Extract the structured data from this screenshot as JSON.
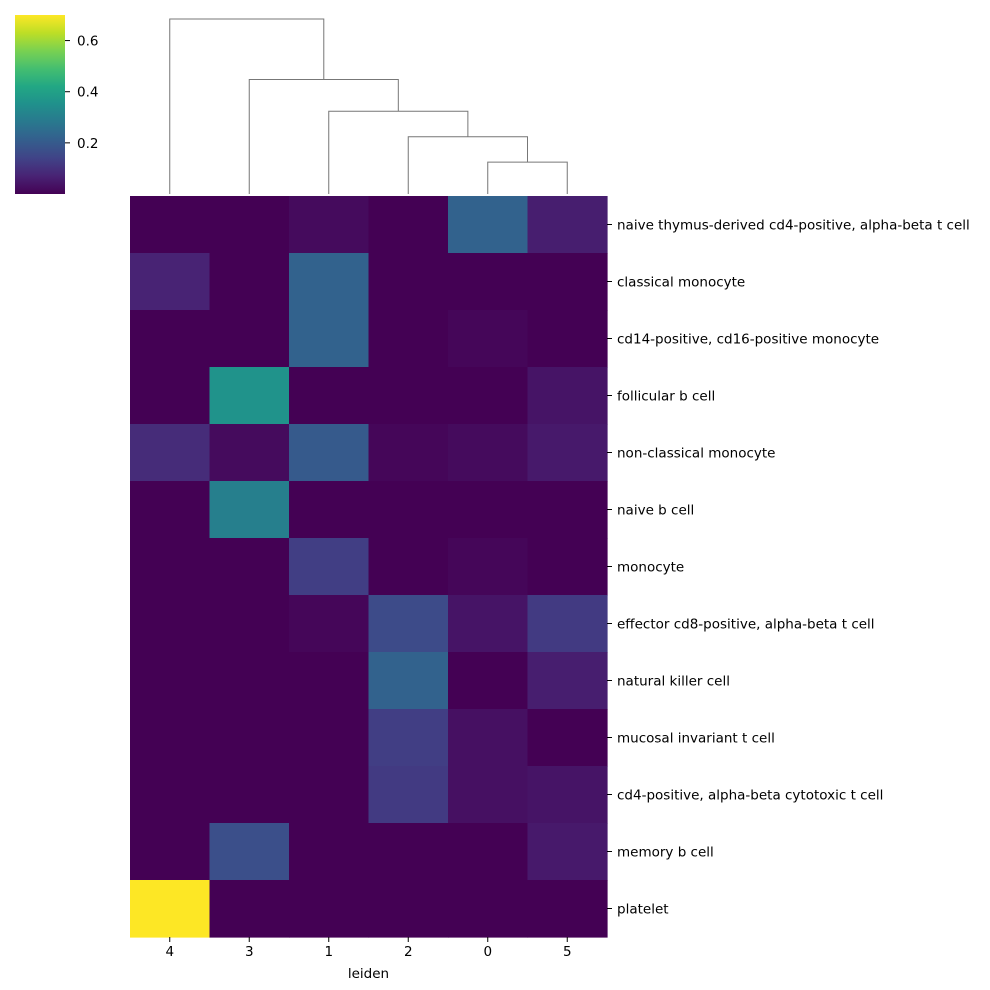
{
  "chart_data": {
    "type": "heatmap",
    "title": "",
    "xlabel": "leiden",
    "ylabel": "",
    "colormap": "viridis",
    "colorbar": {
      "vmin": 0.0,
      "vmax": 0.7,
      "ticks": [
        0.2,
        0.4,
        0.6
      ],
      "tick_labels": [
        "0.2",
        "0.4",
        "0.6"
      ]
    },
    "columns": [
      "4",
      "3",
      "1",
      "2",
      "0",
      "5"
    ],
    "rows": [
      "naive thymus-derived cd4-positive, alpha-beta t cell",
      "classical monocyte",
      "cd14-positive, cd16-positive monocyte",
      "follicular b cell",
      "non-classical monocyte",
      "naive b cell",
      "monocyte",
      "effector cd8-positive, alpha-beta t cell",
      "natural killer cell",
      "mucosal invariant t cell",
      "cd4-positive, alpha-beta cytotoxic t cell",
      "memory b cell",
      "platelet"
    ],
    "values": [
      [
        0.0,
        0.0,
        0.02,
        0.0,
        0.22,
        0.06
      ],
      [
        0.07,
        0.0,
        0.22,
        0.0,
        0.0,
        0.0
      ],
      [
        0.0,
        0.0,
        0.22,
        0.0,
        0.01,
        0.0
      ],
      [
        0.0,
        0.36,
        0.0,
        0.0,
        0.0,
        0.04
      ],
      [
        0.09,
        0.02,
        0.2,
        0.01,
        0.02,
        0.05
      ],
      [
        0.0,
        0.3,
        0.0,
        0.0,
        0.0,
        0.0
      ],
      [
        0.0,
        0.0,
        0.13,
        0.0,
        0.01,
        0.0
      ],
      [
        0.0,
        0.0,
        0.01,
        0.16,
        0.04,
        0.12
      ],
      [
        0.0,
        0.0,
        0.0,
        0.22,
        0.0,
        0.06
      ],
      [
        0.0,
        0.0,
        0.0,
        0.13,
        0.03,
        0.0
      ],
      [
        0.0,
        0.0,
        0.0,
        0.12,
        0.03,
        0.04
      ],
      [
        0.0,
        0.17,
        0.0,
        0.0,
        0.0,
        0.05
      ],
      [
        0.7,
        0.0,
        0.0,
        0.0,
        0.0,
        0.0
      ]
    ],
    "dendrogram": {
      "leaf_order": [
        "4",
        "3",
        "1",
        "2",
        "0",
        "5"
      ],
      "merges": [
        {
          "left": "0",
          "right": "5",
          "height": 1.0
        },
        {
          "left": "2",
          "right": "(0,5)",
          "height": 1.8
        },
        {
          "left": "1",
          "right": "(2,(0,5))",
          "height": 2.6
        },
        {
          "left": "3",
          "right": "(1,(2,(0,5)))",
          "height": 3.6
        },
        {
          "left": "4",
          "right": "(3,(1,(2,(0,5))))",
          "height": 5.5
        }
      ]
    }
  }
}
